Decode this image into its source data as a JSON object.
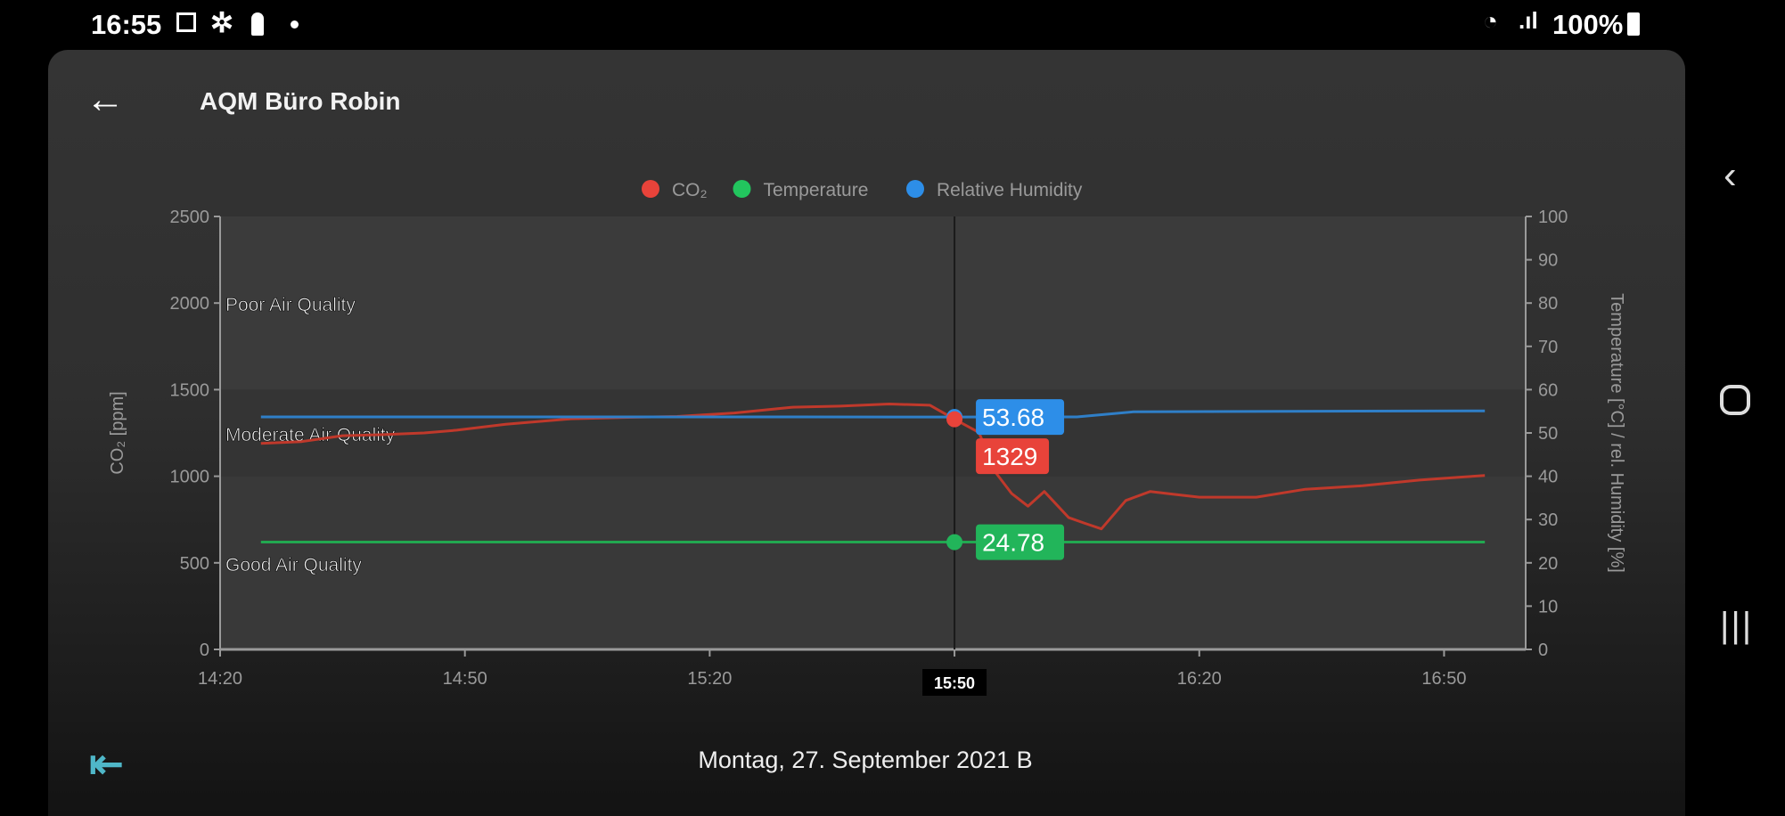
{
  "status_bar": {
    "time": "16:55",
    "battery": "100%",
    "icons": [
      "image-icon",
      "gear-icon",
      "lock-icon",
      "dot-icon",
      "wifi-icon",
      "signal-icon",
      "battery-icon"
    ]
  },
  "header": {
    "title": "AQM Büro Robin",
    "back_icon": "arrow-left-icon"
  },
  "footer": {
    "date": "Montag, 27. September 2021 B",
    "exit_icon": "exit-left-icon"
  },
  "nav": {
    "back": "chevron-left-icon",
    "home": "home-icon",
    "recents": "recents-icon"
  },
  "chart_data": {
    "type": "line",
    "legend": [
      {
        "label": "CO₂",
        "color": "#e8433a"
      },
      {
        "label": "Temperature",
        "color": "#22c55e"
      },
      {
        "label": "Relative Humidity",
        "color": "#2d8ee8"
      }
    ],
    "legend_position": "top-center",
    "x_label": "",
    "x_ticks": [
      "14:20",
      "14:50",
      "15:20",
      "15:50",
      "16:20",
      "16:50"
    ],
    "x_range_minutes_from_1420": [
      0,
      160
    ],
    "y_left": {
      "label": "CO₂ [ppm]",
      "range": [
        0,
        2500
      ],
      "ticks": [
        "0",
        "500",
        "1000",
        "1500",
        "2000",
        "2500"
      ]
    },
    "y_right": {
      "label": "Temperature [°C] / rel. Humidity [%]",
      "range": [
        0,
        100
      ],
      "ticks": [
        "0",
        "10",
        "20",
        "30",
        "40",
        "50",
        "60",
        "70",
        "80",
        "90",
        "100"
      ]
    },
    "zones": [
      {
        "label": "Poor Air Quality",
        "at": 2000
      },
      {
        "label": "Moderate Air Quality",
        "at": 1250
      },
      {
        "label": "Good Air Quality",
        "at": 500
      }
    ],
    "series": [
      {
        "name": "CO₂",
        "axis": "left",
        "color": "#c0392b",
        "x": [
          5,
          10,
          15,
          20,
          25,
          29,
          35,
          43,
          50,
          56,
          63,
          70,
          76,
          82,
          87,
          90,
          93,
          95,
          97,
          99,
          101,
          104,
          106,
          108,
          111,
          114,
          117,
          120,
          127,
          133,
          140,
          147,
          152,
          155
        ],
        "y": [
          1190,
          1200,
          1234,
          1240,
          1250,
          1266,
          1300,
          1332,
          1340,
          1345,
          1365,
          1398,
          1405,
          1417,
          1410,
          1329,
          1253,
          1024,
          900,
          827,
          912,
          761,
          728,
          696,
          860,
          912,
          895,
          879,
          879,
          925,
          945,
          978,
          995,
          1004
        ]
      },
      {
        "name": "Temperature",
        "axis": "right",
        "color": "#22a850",
        "x": [
          5,
          155
        ],
        "y": [
          24.8,
          24.8
        ]
      },
      {
        "name": "Relative Humidity",
        "axis": "right",
        "color": "#2f7fc8",
        "x": [
          5,
          60,
          90,
          105,
          112,
          155
        ],
        "y": [
          53.7,
          53.7,
          53.68,
          53.7,
          54.9,
          55.1
        ]
      }
    ],
    "crosshair": {
      "x_label": "15:50",
      "x_minutes": 90,
      "values": [
        {
          "series": "Relative Humidity",
          "text": "53.68",
          "value": 53.68,
          "axis": "right",
          "color": "#2d8ee8"
        },
        {
          "series": "CO₂",
          "text": "1329",
          "value": 1329,
          "axis": "left",
          "color": "#e8433a"
        },
        {
          "series": "Temperature",
          "text": "24.78",
          "value": 24.78,
          "axis": "right",
          "color": "#22b55a"
        }
      ]
    }
  }
}
